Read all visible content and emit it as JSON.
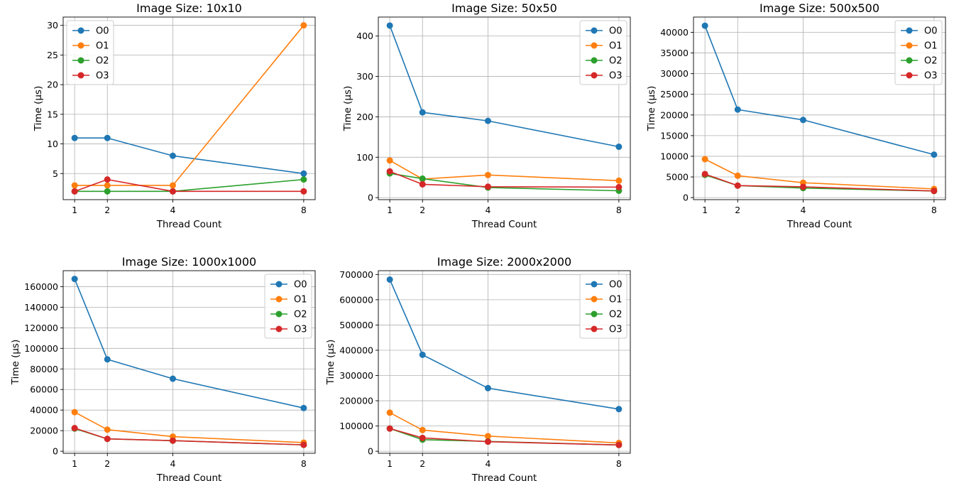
{
  "chart_data": [
    {
      "type": "line",
      "title": "Image Size: 10x10",
      "xlabel": "Thread Count",
      "ylabel": "Time (µs)",
      "x": [
        1,
        2,
        4,
        8
      ],
      "xticks": [
        1,
        2,
        4,
        8
      ],
      "ylim": [
        0.6,
        31.4
      ],
      "yticks": [
        5,
        10,
        15,
        20,
        25,
        30
      ],
      "legend": "upper-left",
      "grid": true,
      "series": [
        {
          "name": "O0",
          "color": "#1f77b4",
          "values": [
            11,
            11,
            8,
            5
          ]
        },
        {
          "name": "O1",
          "color": "#ff7f0e",
          "values": [
            3,
            3,
            3,
            30
          ]
        },
        {
          "name": "O2",
          "color": "#2ca02c",
          "values": [
            2,
            2,
            2,
            4
          ]
        },
        {
          "name": "O3",
          "color": "#d62728",
          "values": [
            2,
            4,
            2,
            2
          ]
        }
      ]
    },
    {
      "type": "line",
      "title": "Image Size: 50x50",
      "xlabel": "Thread Count",
      "ylabel": "Time (µs)",
      "x": [
        1,
        2,
        4,
        8
      ],
      "xticks": [
        1,
        2,
        4,
        8
      ],
      "ylim": [
        -5,
        447
      ],
      "yticks": [
        0,
        100,
        200,
        300,
        400
      ],
      "legend": "upper-right",
      "grid": true,
      "series": [
        {
          "name": "O0",
          "color": "#1f77b4",
          "values": [
            426,
            211,
            190,
            126
          ]
        },
        {
          "name": "O1",
          "color": "#ff7f0e",
          "values": [
            92,
            46,
            56,
            42
          ]
        },
        {
          "name": "O2",
          "color": "#2ca02c",
          "values": [
            60,
            47,
            25,
            17
          ]
        },
        {
          "name": "O3",
          "color": "#d62728",
          "values": [
            65,
            33,
            27,
            26
          ]
        }
      ]
    },
    {
      "type": "line",
      "title": "Image Size: 500x500",
      "xlabel": "Thread Count",
      "ylabel": "Time (µs)",
      "x": [
        1,
        2,
        4,
        8
      ],
      "xticks": [
        1,
        2,
        4,
        8
      ],
      "ylim": [
        -500,
        43700
      ],
      "yticks": [
        0,
        5000,
        10000,
        15000,
        20000,
        25000,
        30000,
        35000,
        40000
      ],
      "legend": "upper-right",
      "grid": true,
      "series": [
        {
          "name": "O0",
          "color": "#1f77b4",
          "values": [
            41600,
            21300,
            18800,
            10400
          ]
        },
        {
          "name": "O1",
          "color": "#ff7f0e",
          "values": [
            9300,
            5300,
            3600,
            2100
          ]
        },
        {
          "name": "O2",
          "color": "#2ca02c",
          "values": [
            5500,
            2900,
            2300,
            1600
          ]
        },
        {
          "name": "O3",
          "color": "#d62728",
          "values": [
            5700,
            2900,
            2600,
            1600
          ]
        }
      ]
    },
    {
      "type": "line",
      "title": "Image Size: 1000x1000",
      "xlabel": "Thread Count",
      "ylabel": "Time (µs)",
      "x": [
        1,
        2,
        4,
        8
      ],
      "xticks": [
        1,
        2,
        4,
        8
      ],
      "ylim": [
        -2000,
        175500
      ],
      "yticks": [
        0,
        20000,
        40000,
        60000,
        80000,
        100000,
        120000,
        140000,
        160000
      ],
      "legend": "upper-right",
      "grid": true,
      "series": [
        {
          "name": "O0",
          "color": "#1f77b4",
          "values": [
            167500,
            89300,
            70500,
            42000
          ]
        },
        {
          "name": "O1",
          "color": "#ff7f0e",
          "values": [
            38000,
            21000,
            14200,
            8400
          ]
        },
        {
          "name": "O2",
          "color": "#2ca02c",
          "values": [
            22000,
            12000,
            10300,
            6200
          ]
        },
        {
          "name": "O3",
          "color": "#d62728",
          "values": [
            22500,
            12000,
            10300,
            6200
          ]
        }
      ]
    },
    {
      "type": "line",
      "title": "Image Size: 2000x2000",
      "xlabel": "Thread Count",
      "ylabel": "Time (µs)",
      "x": [
        1,
        2,
        4,
        8
      ],
      "xticks": [
        1,
        2,
        4,
        8
      ],
      "ylim": [
        -8000,
        715000
      ],
      "yticks": [
        0,
        100000,
        200000,
        300000,
        400000,
        500000,
        600000,
        700000
      ],
      "legend": "upper-right",
      "grid": true,
      "series": [
        {
          "name": "O0",
          "color": "#1f77b4",
          "values": [
            680000,
            382000,
            250000,
            167000
          ]
        },
        {
          "name": "O1",
          "color": "#ff7f0e",
          "values": [
            153000,
            84000,
            60000,
            33000
          ]
        },
        {
          "name": "O2",
          "color": "#2ca02c",
          "values": [
            90000,
            46000,
            39000,
            25000
          ]
        },
        {
          "name": "O3",
          "color": "#d62728",
          "values": [
            90000,
            53000,
            38000,
            25000
          ]
        }
      ]
    }
  ]
}
